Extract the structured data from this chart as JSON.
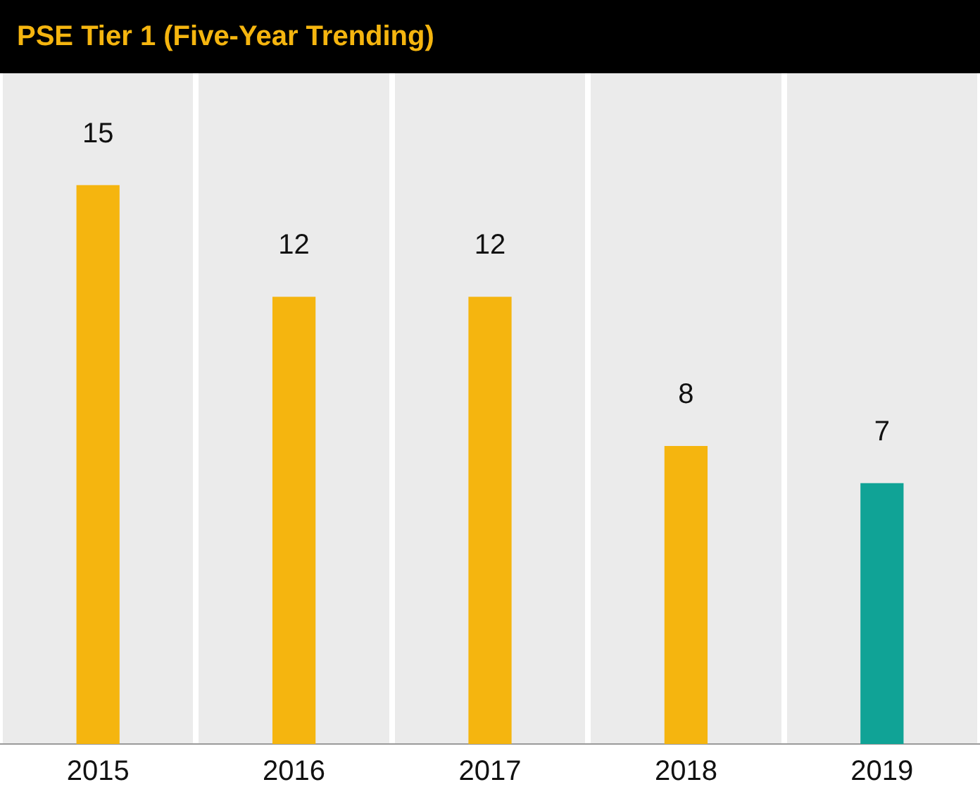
{
  "chart_data": {
    "type": "bar",
    "title": "PSE Tier 1 (Five-Year Trending)",
    "categories": [
      "2015",
      "2016",
      "2017",
      "2018",
      "2019"
    ],
    "values": [
      15,
      12,
      12,
      8,
      7
    ],
    "colors": [
      "#f5b50f",
      "#f5b50f",
      "#f5b50f",
      "#f5b50f",
      "#10a396"
    ],
    "data_labels": true,
    "grid": "x",
    "legend": false
  }
}
